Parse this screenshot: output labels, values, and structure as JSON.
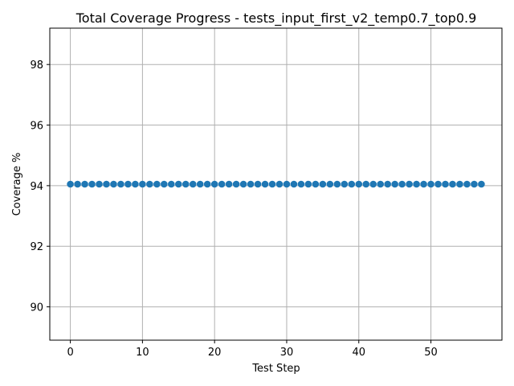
{
  "chart_data": {
    "type": "scatter",
    "title": "Total Coverage Progress - tests_input_first_v2_temp0.7_top0.9",
    "xlabel": "Test Step",
    "ylabel": "Coverage %",
    "xlim": [
      -2.85,
      59.85
    ],
    "ylim": [
      88.9,
      99.2
    ],
    "xticks": [
      0,
      10,
      20,
      30,
      40,
      50
    ],
    "yticks": [
      90,
      92,
      94,
      96,
      98
    ],
    "grid": true,
    "series": [
      {
        "color": "#1f77b4",
        "marker": "circle",
        "x": [
          0,
          1,
          2,
          3,
          4,
          5,
          6,
          7,
          8,
          9,
          10,
          11,
          12,
          13,
          14,
          15,
          16,
          17,
          18,
          19,
          20,
          21,
          22,
          23,
          24,
          25,
          26,
          27,
          28,
          29,
          30,
          31,
          32,
          33,
          34,
          35,
          36,
          37,
          38,
          39,
          40,
          41,
          42,
          43,
          44,
          45,
          46,
          47,
          48,
          49,
          50,
          51,
          52,
          53,
          54,
          55,
          56,
          57
        ],
        "y": [
          94.05,
          94.05,
          94.05,
          94.05,
          94.05,
          94.05,
          94.05,
          94.05,
          94.05,
          94.05,
          94.05,
          94.05,
          94.05,
          94.05,
          94.05,
          94.05,
          94.05,
          94.05,
          94.05,
          94.05,
          94.05,
          94.05,
          94.05,
          94.05,
          94.05,
          94.05,
          94.05,
          94.05,
          94.05,
          94.05,
          94.05,
          94.05,
          94.05,
          94.05,
          94.05,
          94.05,
          94.05,
          94.05,
          94.05,
          94.05,
          94.05,
          94.05,
          94.05,
          94.05,
          94.05,
          94.05,
          94.05,
          94.05,
          94.05,
          94.05,
          94.05,
          94.05,
          94.05,
          94.05,
          94.05,
          94.05,
          94.05,
          94.05
        ]
      }
    ]
  }
}
